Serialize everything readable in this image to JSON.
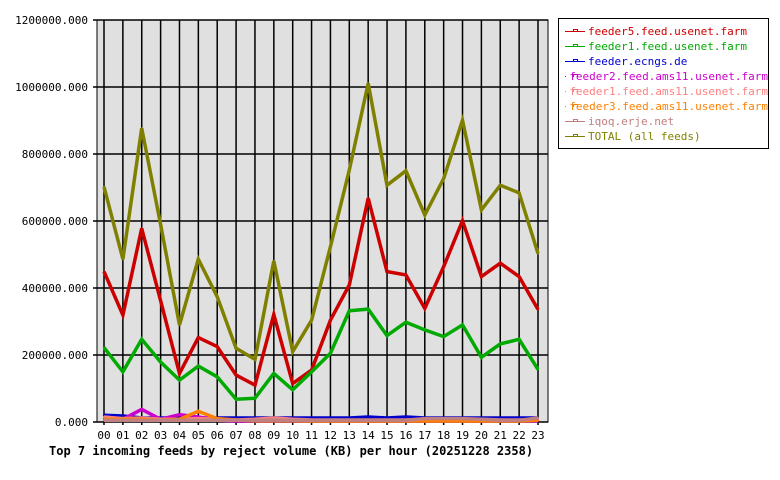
{
  "chart_data": {
    "type": "line",
    "title": "Top 7 incoming feeds by reject volume (KB) per hour (20251228 2358)",
    "xlabel": "",
    "ylabel": "",
    "categories": [
      "00",
      "01",
      "02",
      "03",
      "04",
      "05",
      "06",
      "07",
      "08",
      "09",
      "10",
      "11",
      "12",
      "13",
      "14",
      "15",
      "16",
      "17",
      "18",
      "19",
      "20",
      "21",
      "22",
      "23"
    ],
    "ylim": [
      0,
      1200000
    ],
    "yticks": [
      "0.000",
      "200000.000",
      "400000.000",
      "600000.000",
      "800000.000",
      "1000000.000",
      "1200000.000"
    ],
    "grid": true,
    "legend_position": "right",
    "plot_background": "#e0e0e0",
    "series": [
      {
        "name": "feeder5.feed.usenet.farm",
        "color": "#cc0000",
        "values": [
          449000,
          319000,
          578000,
          362000,
          145000,
          252000,
          225000,
          140000,
          110000,
          321000,
          115000,
          155000,
          304000,
          409000,
          668000,
          449000,
          439000,
          339000,
          464000,
          601000,
          434000,
          474000,
          434000,
          336000
        ]
      },
      {
        "name": "feeder1.feed.usenet.farm",
        "color": "#00aa00",
        "values": [
          222000,
          150000,
          247000,
          179000,
          125000,
          167000,
          135000,
          68000,
          71000,
          145000,
          96000,
          150000,
          205000,
          332000,
          337000,
          258000,
          298000,
          275000,
          255000,
          290000,
          193000,
          233000,
          247000,
          157000
        ]
      },
      {
        "name": "feeder.ecngs.de",
        "color": "#0000cc",
        "values": [
          20000,
          18000,
          12000,
          12000,
          12000,
          12000,
          12000,
          12000,
          12000,
          12000,
          12000,
          12000,
          12000,
          12000,
          15000,
          12000,
          15000,
          12000,
          12000,
          12000,
          12000,
          12000,
          12000,
          12000
        ]
      },
      {
        "name": "feeder2.feed.ams11.usenet.farm",
        "color": "#cc00cc",
        "values": [
          5000,
          8000,
          38000,
          8000,
          22000,
          15000,
          5000,
          3000,
          3000,
          3000,
          3000,
          3000,
          3000,
          3000,
          3000,
          3000,
          3000,
          3000,
          3000,
          3000,
          3000,
          3000,
          3000,
          3000
        ]
      },
      {
        "name": "feeder1.feed.ams11.usenet.farm",
        "color": "#ff8080",
        "values": [
          15000,
          10000,
          12000,
          8000,
          8000,
          10000,
          8000,
          6000,
          8000,
          12000,
          8000,
          6000,
          6000,
          6000,
          6000,
          6000,
          6000,
          8000,
          8000,
          8000,
          8000,
          6000,
          6000,
          8000
        ]
      },
      {
        "name": "feeder3.feed.ams11.usenet.farm",
        "color": "#ff8000",
        "values": [
          8000,
          8000,
          8000,
          5000,
          8000,
          32000,
          10000,
          6000,
          4000,
          4000,
          4000,
          3000,
          3000,
          3000,
          3000,
          3000,
          3000,
          3000,
          3000,
          3000,
          3000,
          3000,
          3000,
          5000
        ]
      },
      {
        "name": "iqoq.erje.net",
        "color": "#c08080",
        "values": [
          5000,
          5000,
          5000,
          5000,
          5000,
          5000,
          5000,
          5000,
          5000,
          5000,
          5000,
          5000,
          5000,
          5000,
          5000,
          5000,
          5000,
          10000,
          10000,
          10000,
          8000,
          5000,
          5000,
          12000
        ]
      },
      {
        "name": "TOTAL (all feeds)",
        "color": "#808000",
        "values": [
          702000,
          486000,
          877000,
          590000,
          290000,
          486000,
          374000,
          220000,
          187000,
          481000,
          210000,
          304000,
          523000,
          752000,
          1011000,
          707000,
          750000,
          618000,
          727000,
          901000,
          633000,
          707000,
          684000,
          503000
        ]
      }
    ]
  }
}
